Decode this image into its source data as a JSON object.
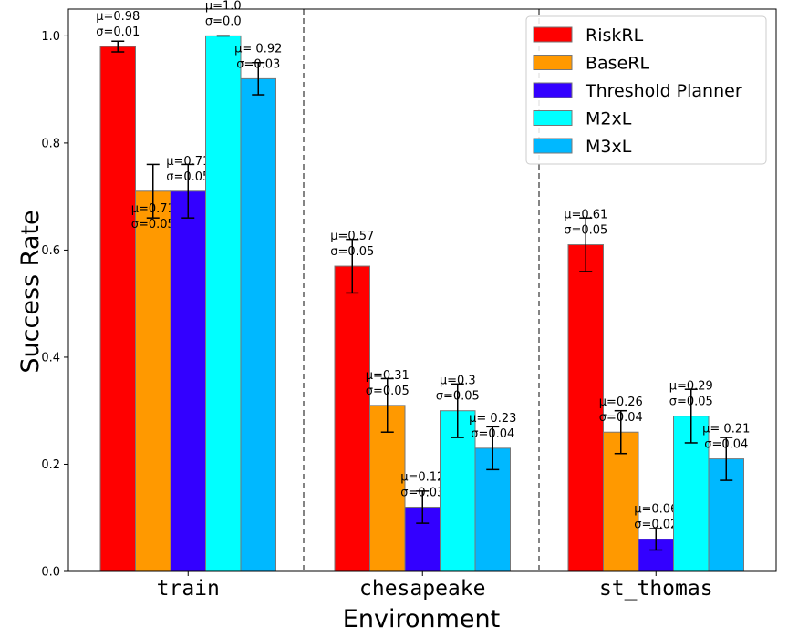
{
  "chart_data": {
    "type": "bar",
    "categories": [
      "train",
      "chesapeake",
      "st_thomas"
    ],
    "xlabel": "Environment",
    "ylabel": "Success Rate",
    "ylim": [
      0,
      1.05
    ],
    "yticks": [
      "0.0",
      "0.2",
      "0.4",
      "0.6",
      "0.8",
      "1.0"
    ],
    "legend_position": "top-right",
    "separators": "dashed vertical lines between environments",
    "series": [
      {
        "name": "RiskRL",
        "color": "#ff0000",
        "values": [
          0.98,
          0.57,
          0.61
        ],
        "errors": [
          0.01,
          0.05,
          0.05
        ],
        "labels": [
          [
            "μ=0.98",
            "σ=0.01"
          ],
          [
            "μ=0.57",
            "σ=0.05"
          ],
          [
            "μ=0.61",
            "σ=0.05"
          ]
        ]
      },
      {
        "name": "BaseRL",
        "color": "#ff9900",
        "values": [
          0.71,
          0.31,
          0.26
        ],
        "errors": [
          0.05,
          0.05,
          0.04
        ],
        "labels": [
          [
            "μ=0.71",
            "σ=0.05"
          ],
          [
            "μ=0.31",
            "σ=0.05"
          ],
          [
            "μ=0.26",
            "σ=0.04"
          ]
        ]
      },
      {
        "name": "Threshold Planner",
        "color": "#3300ff",
        "values": [
          0.71,
          0.12,
          0.06
        ],
        "errors": [
          0.05,
          0.03,
          0.02
        ],
        "labels": [
          [
            "μ=0.71",
            "σ=0.05"
          ],
          [
            "μ=0.12",
            "σ=0.03"
          ],
          [
            "μ=0.06",
            "σ=0.02"
          ]
        ]
      },
      {
        "name": "M2xL",
        "color": "#00ffff",
        "values": [
          1.0,
          0.3,
          0.29
        ],
        "errors": [
          0.0,
          0.05,
          0.05
        ],
        "labels": [
          [
            "μ=1.0",
            "σ=0.0"
          ],
          [
            "μ=0.3",
            "σ=0.05"
          ],
          [
            "μ=0.29",
            "σ=0.05"
          ]
        ]
      },
      {
        "name": "M3xL",
        "color": "#00b8ff",
        "values": [
          0.92,
          0.23,
          0.21
        ],
        "errors": [
          0.03,
          0.04,
          0.04
        ],
        "labels": [
          [
            "μ= 0.92",
            "σ=0.03"
          ],
          [
            "μ= 0.23",
            "σ=0.04"
          ],
          [
            "μ= 0.21",
            "σ=0.04"
          ]
        ]
      }
    ]
  }
}
